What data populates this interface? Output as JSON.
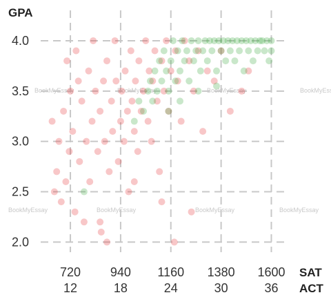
{
  "chart_data": {
    "type": "scatter",
    "y_label": "GPA",
    "x_label": "SAT",
    "x2_label": "ACT",
    "xlim": [
      590,
      1665
    ],
    "ylim": [
      1.9,
      4.13
    ],
    "xticks": [
      720,
      940,
      1160,
      1380,
      1600
    ],
    "x2ticks": [
      12,
      18,
      24,
      30,
      36
    ],
    "yticks": [
      {
        "value": 2,
        "label": "2.0"
      },
      {
        "value": 2.5,
        "label": "2.5"
      },
      {
        "value": 3,
        "label": "3.0"
      },
      {
        "value": 3.5,
        "label": "3.5"
      },
      {
        "value": 4,
        "label": "4.0"
      }
    ],
    "grid": true,
    "watermarks": [
      "BookMyEssay",
      "BookMyEssay",
      "BookMyEssay",
      "BookMyEssay",
      "BookMyEssay",
      "BookMyEssay",
      "BookMyEssay",
      "BookMyEssay"
    ],
    "series": [
      {
        "color": "#e8474a",
        "x": [
          640,
          650,
          660,
          670,
          680,
          690,
          700,
          705,
          715,
          720,
          730,
          740,
          745,
          755,
          760,
          770,
          780,
          790,
          800,
          805,
          815,
          820,
          830,
          840,
          850,
          855,
          865,
          870,
          880,
          890,
          900,
          905,
          915,
          920,
          930,
          940,
          945,
          955,
          960,
          970,
          975,
          985,
          990,
          1000,
          1005,
          1015,
          1020,
          1030,
          1040,
          1050,
          1060,
          1065,
          1075,
          1080,
          1090,
          1100,
          1110,
          1120,
          1130,
          1140,
          1150,
          1160,
          1175,
          1180,
          1190,
          1205,
          1220,
          1240,
          1260,
          1280,
          1300,
          1320,
          1350,
          1380,
          1420,
          1470,
          1500,
          850,
          880,
          1000,
          1120,
          1250
        ],
        "y": [
          3.2,
          2.5,
          2.7,
          3.0,
          2.4,
          3.3,
          2.6,
          3.8,
          2.9,
          3.5,
          3.1,
          2.3,
          3.9,
          3.6,
          2.8,
          3.4,
          2.2,
          3.0,
          3.7,
          2.6,
          3.2,
          4.0,
          3.5,
          2.9,
          3.3,
          2.1,
          3.6,
          3.0,
          3.8,
          2.7,
          3.4,
          3.1,
          4.0,
          3.6,
          2.8,
          3.2,
          3.5,
          3.0,
          3.7,
          3.3,
          2.5,
          3.9,
          3.4,
          3.1,
          3.6,
          2.9,
          3.8,
          3.3,
          3.5,
          4.0,
          3.2,
          3.7,
          3.0,
          3.6,
          3.9,
          3.4,
          2.7,
          3.8,
          3.5,
          4.0,
          3.3,
          3.7,
          2.0,
          3.9,
          3.6,
          3.2,
          4.0,
          3.8,
          3.5,
          3.9,
          3.1,
          3.7,
          3.6,
          3.9,
          3.3,
          3.5,
          3.7,
          2.2,
          2.0,
          2.6,
          2.4,
          2.3
        ]
      },
      {
        "color": "#4caf50",
        "x": [
          780,
          1000,
          1020,
          1040,
          1060,
          1070,
          1080,
          1090,
          1100,
          1110,
          1120,
          1130,
          1140,
          1150,
          1160,
          1170,
          1180,
          1190,
          1200,
          1210,
          1220,
          1230,
          1240,
          1250,
          1260,
          1270,
          1280,
          1290,
          1300,
          1310,
          1320,
          1330,
          1340,
          1350,
          1360,
          1370,
          1380,
          1390,
          1400,
          1410,
          1420,
          1430,
          1440,
          1450,
          1460,
          1470,
          1480,
          1490,
          1500,
          1510,
          1520,
          1530,
          1540,
          1550,
          1560,
          1570,
          1580,
          1590,
          1600,
          1600,
          1150,
          1200,
          1280,
          1360
        ],
        "y": [
          2.5,
          3.2,
          3.4,
          3.3,
          3.5,
          3.6,
          3.4,
          3.7,
          3.5,
          3.8,
          3.6,
          3.9,
          3.7,
          3.5,
          3.8,
          4.0,
          3.6,
          3.9,
          3.7,
          4.0,
          3.8,
          3.9,
          3.6,
          4.0,
          3.8,
          3.9,
          4.0,
          3.7,
          3.9,
          4.0,
          3.8,
          4.0,
          3.9,
          4.0,
          3.7,
          4.0,
          3.9,
          4.0,
          3.8,
          4.0,
          3.9,
          4.0,
          3.8,
          4.0,
          3.9,
          4.0,
          3.7,
          4.0,
          3.9,
          4.0,
          3.8,
          4.0,
          3.9,
          4.0,
          4.0,
          3.9,
          4.0,
          3.8,
          4.0,
          3.9,
          3.3,
          3.4,
          3.5,
          3.55
        ]
      }
    ]
  }
}
